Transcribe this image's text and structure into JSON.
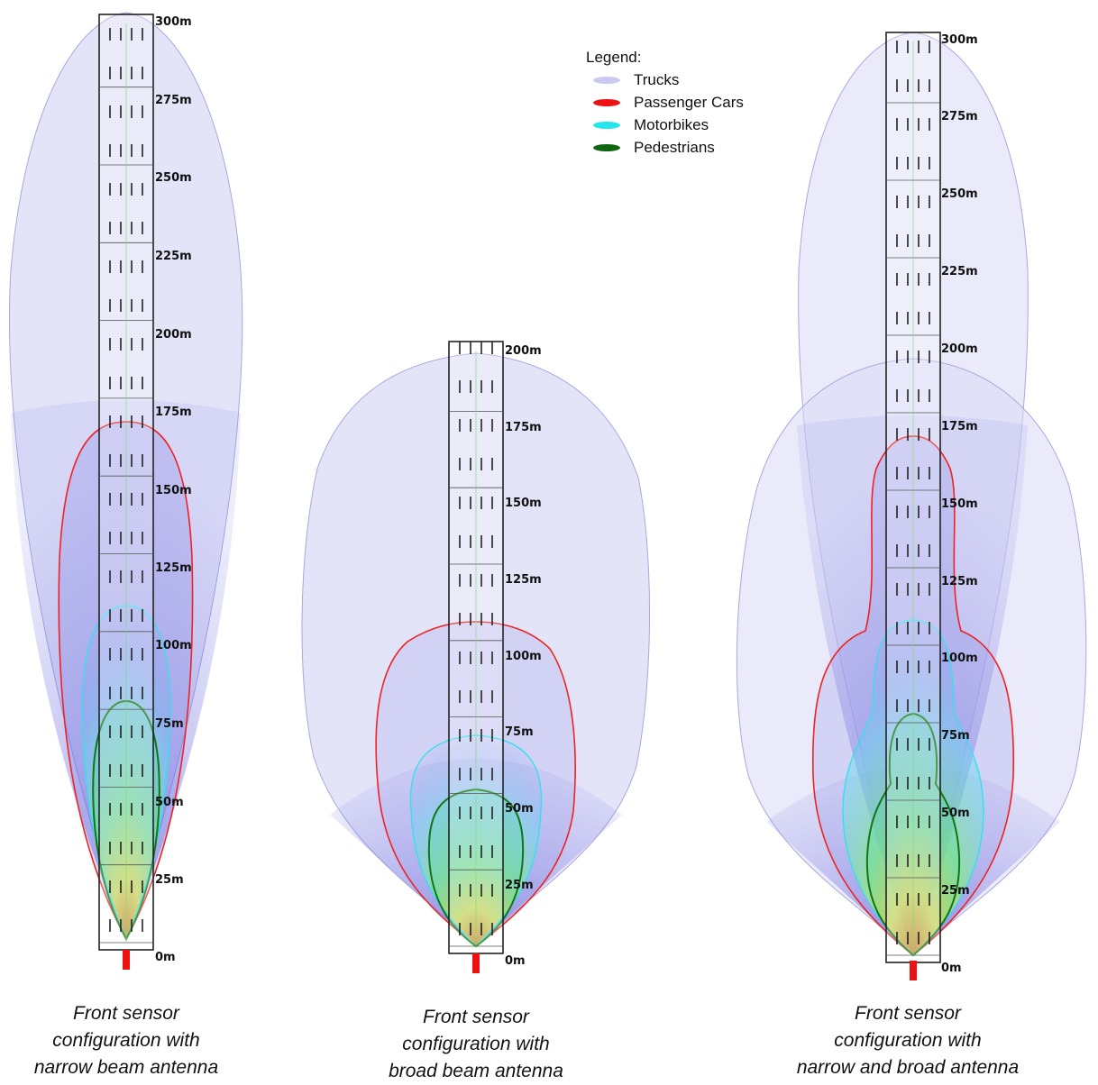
{
  "legend": {
    "title": "Legend:",
    "items": [
      {
        "label": "Trucks",
        "color": "#c9c9f2"
      },
      {
        "label": "Passenger Cars",
        "color": "#ee1111"
      },
      {
        "label": "Motorbikes",
        "color": "#22e6ee"
      },
      {
        "label": "Pedestrians",
        "color": "#116611"
      }
    ]
  },
  "panels": [
    {
      "id": "narrow",
      "caption_lines": [
        "Front sensor",
        "configuration with",
        "narrow beam antenna"
      ],
      "distance_labels": [
        "0m",
        "25m",
        "50m",
        "75m",
        "100m",
        "125m",
        "150m",
        "175m",
        "200m",
        "225m",
        "250m",
        "275m",
        "300m"
      ]
    },
    {
      "id": "broad",
      "caption_lines": [
        "Front sensor",
        "configuration with",
        "broad beam antenna"
      ],
      "distance_labels": [
        "0m",
        "25m",
        "50m",
        "75m",
        "100m",
        "125m",
        "150m",
        "175m",
        "200m"
      ]
    },
    {
      "id": "combined",
      "caption_lines": [
        "Front sensor",
        "configuration with",
        "narrow and broad antenna"
      ],
      "distance_labels": [
        "0m",
        "25m",
        "50m",
        "75m",
        "100m",
        "125m",
        "150m",
        "175m",
        "200m",
        "225m",
        "250m",
        "275m",
        "300m"
      ]
    }
  ]
}
